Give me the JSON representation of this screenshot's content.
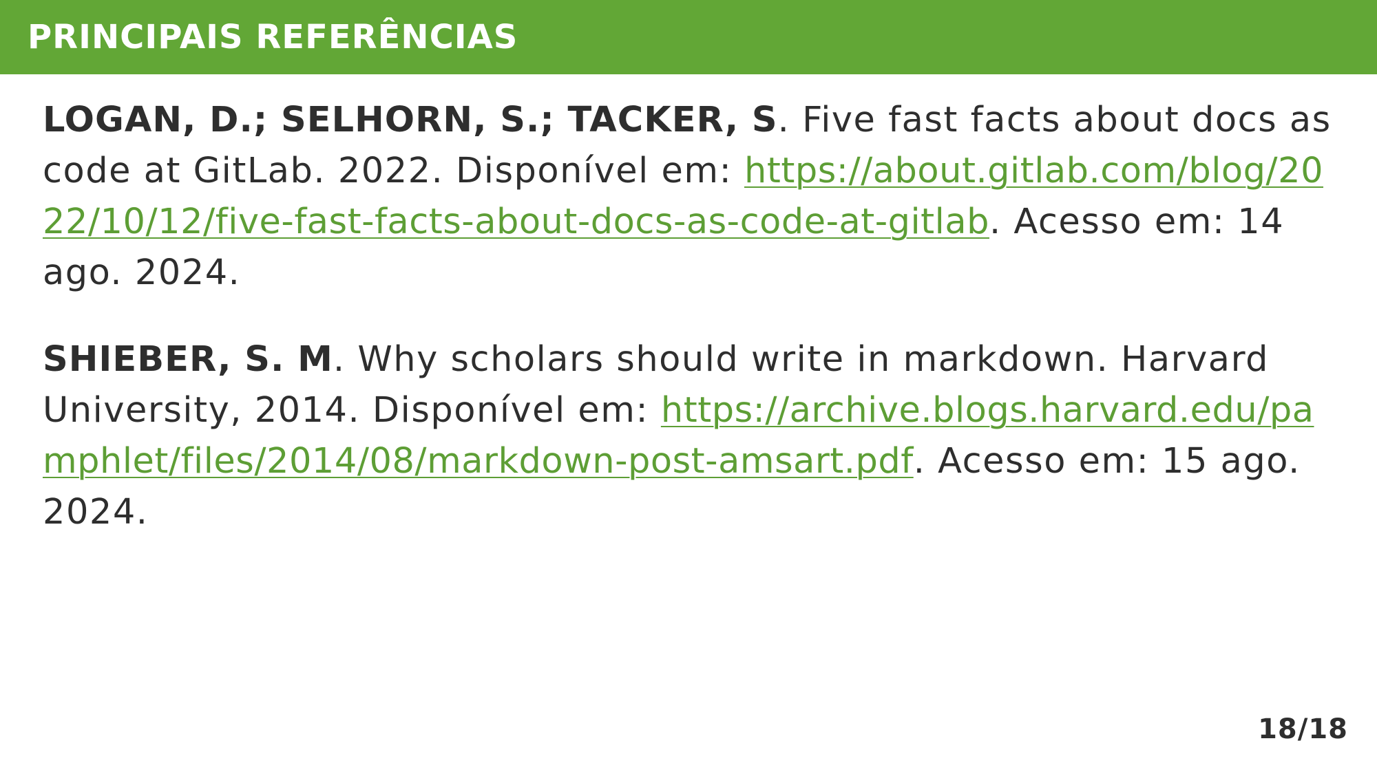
{
  "header": {
    "title": "PRINCIPAIS REFERÊNCIAS",
    "background_color": "#62a736"
  },
  "references": [
    {
      "authors": "LOGAN, D.; SELHORN, S.; TACKER, S",
      "text": ". Five fast facts about docs as code at GitLab. 2022. Disponível em: ",
      "link": "https://about.gitlab.com/blog/2022/10/12/five-fast-facts-about-docs-as-code-at-gitlab",
      "access": ". Acesso em: 14 ago. 2024."
    },
    {
      "authors": "SHIEBER, S. M",
      "text": ". Why scholars should write in markdown. Harvard University, 2014. Disponível em: ",
      "link": "https://archive.blogs.harvard.edu/pamphlet/files/2014/08/markdown-post-amsart.pdf",
      "access": ". Acesso em: 15 ago. 2024."
    }
  ],
  "footer": {
    "page_number": "18/18"
  },
  "colors": {
    "link": "#5d9e35",
    "text": "#2e2e2e"
  }
}
